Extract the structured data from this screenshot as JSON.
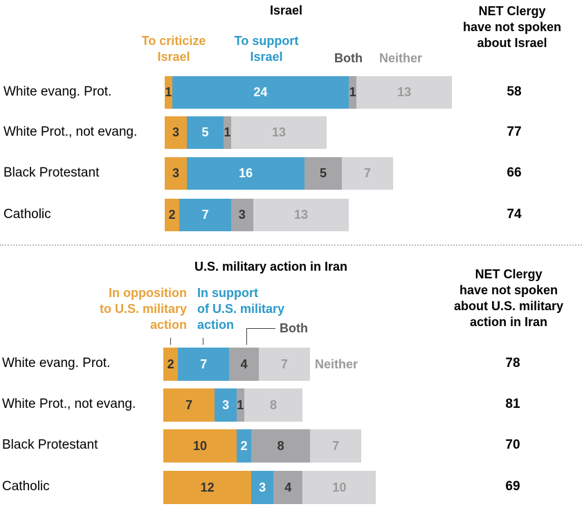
{
  "colors": {
    "oppose": "#e8a23a",
    "support": "#4aa3cf",
    "both": "#a6a6a8",
    "neither": "#d6d6d8",
    "text_dark": "#333333",
    "text_white": "#ffffff",
    "text_neither": "#9a9a9a",
    "legend_oppose": "#e8a23a",
    "legend_support": "#2a9ac9",
    "legend_both": "#555555",
    "legend_neither": "#9a9a9a"
  },
  "panel1": {
    "title": "Israel",
    "net_header": [
      "NET Clergy",
      "have not spoken",
      "about Israel"
    ],
    "legend": {
      "oppose": [
        "To criticize",
        "Israel"
      ],
      "support": [
        "To support",
        "Israel"
      ],
      "both": "Both",
      "neither": "Neither"
    }
  },
  "panel2": {
    "title": "U.S. military action in Iran",
    "net_header": [
      "NET Clergy",
      "have not spoken",
      "about U.S. military",
      "action in Iran"
    ],
    "legend": {
      "oppose": [
        "In opposition",
        "to U.S. military",
        "action"
      ],
      "support": [
        "In support",
        "of U.S. military",
        "action"
      ],
      "both": "Both",
      "neither": "Neither"
    }
  },
  "chart_data": [
    {
      "type": "bar",
      "orientation": "horizontal",
      "stacked": true,
      "title": "Israel",
      "categories": [
        "White evang. Prot.",
        "White Prot., not evang.",
        "Black Protestant",
        "Catholic"
      ],
      "series": [
        {
          "name": "To criticize Israel",
          "values": [
            1,
            3,
            3,
            2
          ]
        },
        {
          "name": "To support Israel",
          "values": [
            24,
            5,
            16,
            7
          ]
        },
        {
          "name": "Both",
          "values": [
            1,
            1,
            5,
            3
          ]
        },
        {
          "name": "Neither",
          "values": [
            13,
            13,
            7,
            13
          ]
        }
      ],
      "net_not_spoken": {
        "label": "NET Clergy have not spoken about Israel",
        "values": [
          58,
          77,
          66,
          74
        ]
      }
    },
    {
      "type": "bar",
      "orientation": "horizontal",
      "stacked": true,
      "title": "U.S. military action in Iran",
      "categories": [
        "White evang. Prot.",
        "White Prot., not evang.",
        "Black Protestant",
        "Catholic"
      ],
      "series": [
        {
          "name": "In opposition to U.S. military action",
          "values": [
            2,
            7,
            10,
            12
          ]
        },
        {
          "name": "In support of U.S. military action",
          "values": [
            7,
            3,
            2,
            3
          ]
        },
        {
          "name": "Both",
          "values": [
            4,
            1,
            8,
            4
          ]
        },
        {
          "name": "Neither",
          "values": [
            7,
            8,
            7,
            10
          ]
        }
      ],
      "net_not_spoken": {
        "label": "NET Clergy have not spoken about U.S. military action in Iran",
        "values": [
          78,
          81,
          70,
          69
        ]
      }
    }
  ]
}
